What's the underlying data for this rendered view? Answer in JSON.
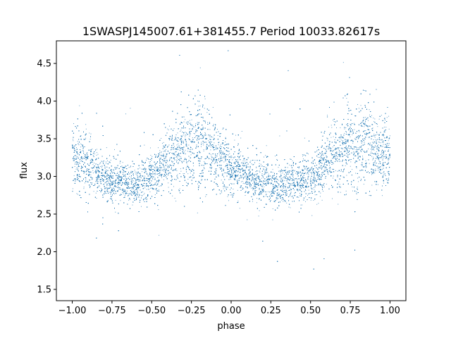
{
  "chart_data": {
    "type": "scatter",
    "title": "1SWASPJ145007.61+381455.7 Period 10033.82617s",
    "xlabel": "phase",
    "ylabel": "flux",
    "xlim": [
      -1.1,
      1.1
    ],
    "ylim": [
      1.35,
      4.8
    ],
    "xticks": [
      -1.0,
      -0.75,
      -0.5,
      -0.25,
      0.0,
      0.25,
      0.5,
      0.75,
      1.0
    ],
    "xtick_labels": [
      "−1.00",
      "−0.75",
      "−0.50",
      "−0.25",
      "0.00",
      "0.25",
      "0.50",
      "0.75",
      "1.00"
    ],
    "yticks": [
      1.5,
      2.0,
      2.5,
      3.0,
      3.5,
      4.0,
      4.5
    ],
    "ytick_labels": [
      "1.5",
      "2.0",
      "2.5",
      "3.0",
      "3.5",
      "4.0",
      "4.5"
    ],
    "grid": false,
    "marker_color": "#1f77b4",
    "trend": {
      "phase": [
        -1.0,
        -0.75,
        -0.6,
        -0.5,
        -0.35,
        -0.2,
        -0.05,
        0.0,
        0.15,
        0.3,
        0.4,
        0.5,
        0.65,
        0.8,
        0.95,
        1.0
      ],
      "flux": [
        3.25,
        2.95,
        2.92,
        3.0,
        3.3,
        3.45,
        3.2,
        3.12,
        2.95,
        2.88,
        2.92,
        3.0,
        3.3,
        3.45,
        3.3,
        3.25
      ]
    },
    "points": [
      [
        -0.95,
        3.2
      ],
      [
        -0.85,
        3.05
      ],
      [
        -0.7,
        2.9
      ],
      [
        -0.6,
        2.85
      ],
      [
        -0.5,
        3.0
      ],
      [
        -0.4,
        3.2
      ],
      [
        -0.3,
        3.45
      ],
      [
        -0.2,
        3.5
      ],
      [
        -0.1,
        3.3
      ],
      [
        0.0,
        3.15
      ],
      [
        0.1,
        3.0
      ],
      [
        0.2,
        2.92
      ],
      [
        0.3,
        2.88
      ],
      [
        0.4,
        2.9
      ],
      [
        0.5,
        3.05
      ],
      [
        0.6,
        3.25
      ],
      [
        0.7,
        3.45
      ],
      [
        0.8,
        3.5
      ],
      [
        0.9,
        3.35
      ],
      [
        1.0,
        3.25
      ]
    ]
  }
}
